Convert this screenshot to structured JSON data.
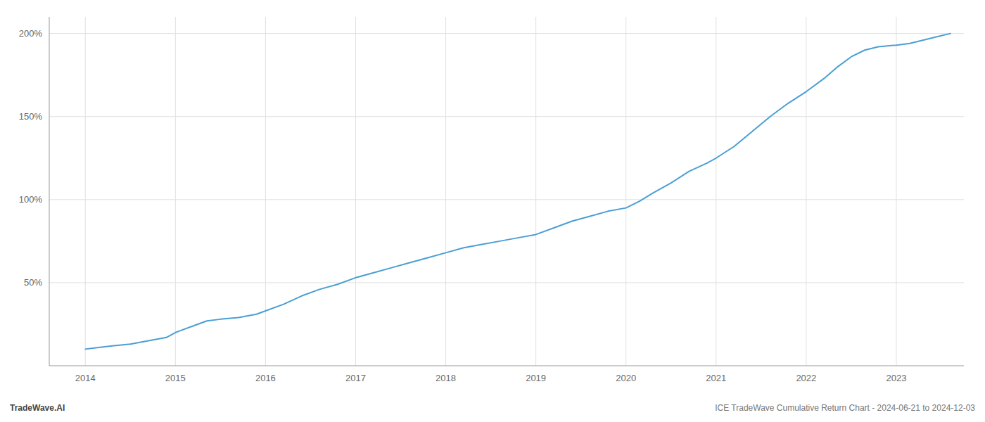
{
  "chart_data": {
    "type": "line",
    "x": [
      2014.0,
      2014.15,
      2014.3,
      2014.5,
      2014.7,
      2014.9,
      2015.0,
      2015.2,
      2015.35,
      2015.5,
      2015.7,
      2015.9,
      2016.0,
      2016.2,
      2016.4,
      2016.6,
      2016.8,
      2017.0,
      2017.2,
      2017.4,
      2017.6,
      2017.8,
      2018.0,
      2018.2,
      2018.4,
      2018.6,
      2018.8,
      2019.0,
      2019.2,
      2019.4,
      2019.6,
      2019.8,
      2020.0,
      2020.15,
      2020.3,
      2020.5,
      2020.7,
      2020.9,
      2021.0,
      2021.2,
      2021.4,
      2021.6,
      2021.8,
      2022.0,
      2022.2,
      2022.35,
      2022.5,
      2022.65,
      2022.8,
      2023.0,
      2023.15,
      2023.3,
      2023.45,
      2023.6
    ],
    "values": [
      10,
      11,
      12,
      13,
      15,
      17,
      20,
      24,
      27,
      28,
      29,
      31,
      33,
      37,
      42,
      46,
      49,
      53,
      56,
      59,
      62,
      65,
      68,
      71,
      73,
      75,
      77,
      79,
      83,
      87,
      90,
      93,
      95,
      99,
      104,
      110,
      117,
      122,
      125,
      132,
      141,
      150,
      158,
      165,
      173,
      180,
      186,
      190,
      192,
      193,
      194,
      196,
      198,
      200
    ],
    "color": "#4a9fd4",
    "xlim": [
      2013.6,
      2023.75
    ],
    "xticks": [
      2014,
      2015,
      2016,
      2017,
      2018,
      2019,
      2020,
      2021,
      2022,
      2023
    ],
    "ylim": [
      0,
      210
    ],
    "yticks": [
      {
        "value": 50,
        "label": "50%"
      },
      {
        "value": 100,
        "label": "100%"
      },
      {
        "value": 150,
        "label": "150%"
      },
      {
        "value": 200,
        "label": "200%"
      }
    ],
    "grid": true,
    "annotations": [
      "TradeWave.AI",
      "ICE TradeWave Cumulative Return Chart - 2024-06-21 to 2024-12-03"
    ]
  }
}
